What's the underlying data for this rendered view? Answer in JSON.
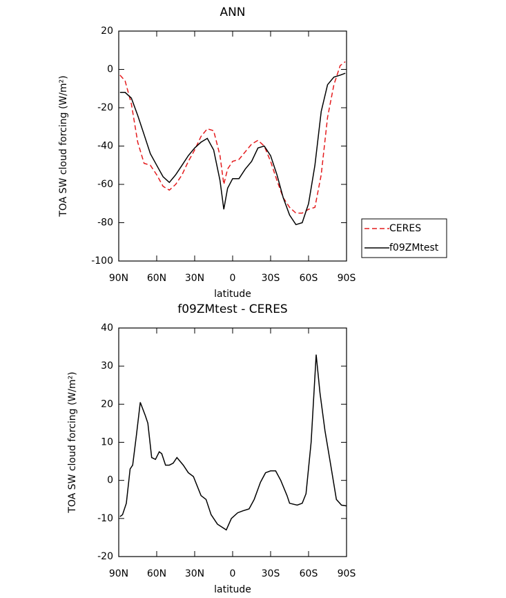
{
  "chart_data": [
    {
      "type": "line",
      "title": "ANN",
      "x_label": "latitude",
      "y_label": "TOA SW cloud forcing (W/m²)",
      "x": [
        89,
        85,
        80,
        75,
        70,
        65,
        60,
        55,
        50,
        45,
        40,
        35,
        30,
        25,
        20,
        15,
        10,
        7,
        4,
        0,
        -5,
        -10,
        -15,
        -20,
        -25,
        -30,
        -35,
        -40,
        -45,
        -50,
        -55,
        -60,
        -65,
        -70,
        -75,
        -80,
        -85,
        -89
      ],
      "series": [
        {
          "name": "CERES",
          "color": "#e41a1c",
          "dash": true,
          "values": [
            -3,
            -6,
            -18,
            -38,
            -49,
            -50,
            -55,
            -61,
            -63,
            -60,
            -55,
            -48,
            -42,
            -35,
            -31,
            -32,
            -45,
            -60,
            -52,
            -48,
            -47,
            -43,
            -39,
            -37,
            -40,
            -48,
            -58,
            -67,
            -72,
            -75,
            -75,
            -73,
            -72,
            -55,
            -25,
            -8,
            2,
            4
          ]
        },
        {
          "name": "f09ZMtest",
          "color": "#000000",
          "dash": false,
          "values": [
            -12,
            -12,
            -15,
            -24,
            -34,
            -44,
            -50,
            -56,
            -59,
            -55,
            -50,
            -45,
            -41,
            -38,
            -36,
            -42,
            -58,
            -73,
            -62,
            -57,
            -57,
            -52,
            -48,
            -41,
            -40,
            -45,
            -55,
            -67,
            -76,
            -81,
            -80,
            -70,
            -50,
            -22,
            -8,
            -4,
            -3,
            -2
          ]
        }
      ],
      "xlim": [
        90,
        -90
      ],
      "xticks": [
        {
          "value": 90,
          "label": "90N"
        },
        {
          "value": 60,
          "label": "60N"
        },
        {
          "value": 30,
          "label": "30N"
        },
        0,
        {
          "value": -30,
          "label": "30S"
        },
        {
          "value": -60,
          "label": "60S"
        },
        {
          "value": -90,
          "label": "90S"
        }
      ],
      "ylim": [
        -100,
        20
      ],
      "yticks": [
        -100,
        -80,
        -60,
        -40,
        -20,
        0,
        20
      ],
      "legend": "right"
    },
    {
      "type": "line",
      "title": "f09ZMtest - CERES",
      "x_label": "latitude",
      "y_label": "TOA SW cloud forcing (W/m²)",
      "x": [
        89,
        87,
        84,
        81,
        79,
        76,
        73,
        69,
        67,
        64,
        61,
        58,
        56,
        53,
        50,
        47,
        44,
        39,
        35,
        31,
        25,
        21,
        17,
        12,
        5,
        1,
        -4,
        -8,
        -13,
        -17,
        -22,
        -26,
        -30,
        -34,
        -38,
        -43,
        -45,
        -51,
        -55,
        -58,
        -62,
        -66,
        -69,
        -73,
        -77,
        -82,
        -86,
        -90
      ],
      "series": [
        {
          "color": "#000000",
          "dash": false,
          "values": [
            -9.5,
            -9,
            -6,
            3,
            4,
            12,
            20.5,
            17,
            15,
            6,
            5.5,
            7.5,
            7,
            4,
            4,
            4.5,
            6,
            4,
            2,
            1,
            -4,
            -5,
            -9,
            -11.5,
            -13,
            -10,
            -8.5,
            -8,
            -7.5,
            -5,
            -0.5,
            2,
            2.5,
            2.5,
            0,
            -4,
            -6,
            -6.5,
            -6,
            -3.5,
            10,
            33,
            23,
            13,
            5,
            -5,
            -6.5,
            -6.7
          ]
        }
      ],
      "xlim": [
        90,
        -90
      ],
      "xticks": [
        {
          "value": 90,
          "label": "90N"
        },
        {
          "value": 60,
          "label": "60N"
        },
        {
          "value": 30,
          "label": "30N"
        },
        0,
        {
          "value": -30,
          "label": "30S"
        },
        {
          "value": -60,
          "label": "60S"
        },
        {
          "value": -90,
          "label": "90S"
        }
      ],
      "ylim": [
        -20,
        40
      ],
      "yticks": [
        -20,
        -10,
        0,
        10,
        20,
        30,
        40
      ]
    }
  ]
}
